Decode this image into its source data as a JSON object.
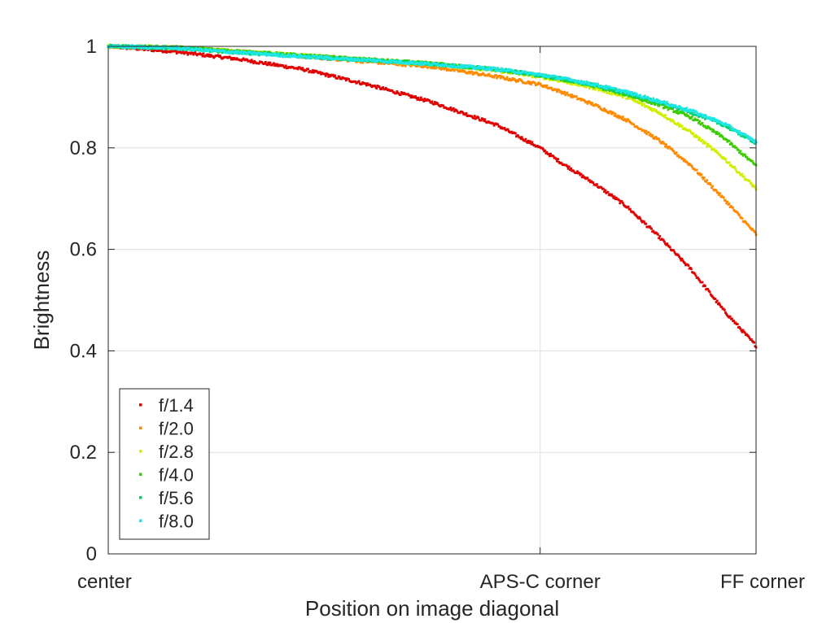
{
  "chart_data": {
    "type": "scatter",
    "title": "",
    "xlabel": "Position on image diagonal",
    "ylabel": "Brightness",
    "xlim": [
      0,
      1
    ],
    "ylim": [
      0,
      1
    ],
    "xticks": [
      {
        "value": 0,
        "label": "center"
      },
      {
        "value": 0.6667,
        "label": "APS-C corner"
      },
      {
        "value": 1,
        "label": "FF corner"
      }
    ],
    "yticks": [
      {
        "value": 0,
        "label": "0"
      },
      {
        "value": 0.2,
        "label": "0.2"
      },
      {
        "value": 0.4,
        "label": "0.4"
      },
      {
        "value": 0.6,
        "label": "0.6"
      },
      {
        "value": 0.8,
        "label": "0.8"
      },
      {
        "value": 1,
        "label": "1"
      }
    ],
    "grid": true,
    "legend_position": "bottom-left",
    "series": [
      {
        "name": "f/1.4",
        "color": "#e00000",
        "x": [
          0,
          0.1,
          0.2,
          0.3,
          0.4,
          0.5,
          0.6,
          0.6667,
          0.7,
          0.75,
          0.8,
          0.85,
          0.9,
          0.95,
          1.0
        ],
        "y": [
          1.0,
          0.99,
          0.975,
          0.955,
          0.925,
          0.89,
          0.845,
          0.8,
          0.77,
          0.73,
          0.685,
          0.625,
          0.56,
          0.48,
          0.41
        ]
      },
      {
        "name": "f/2.0",
        "color": "#ff8a00",
        "x": [
          0,
          0.1,
          0.2,
          0.3,
          0.4,
          0.5,
          0.6,
          0.6667,
          0.7,
          0.75,
          0.8,
          0.85,
          0.9,
          0.95,
          1.0
        ],
        "y": [
          1.0,
          0.998,
          0.99,
          0.98,
          0.97,
          0.96,
          0.94,
          0.925,
          0.91,
          0.885,
          0.855,
          0.815,
          0.765,
          0.7,
          0.63
        ]
      },
      {
        "name": "f/2.8",
        "color": "#d2ee00",
        "x": [
          0,
          0.1,
          0.2,
          0.3,
          0.4,
          0.5,
          0.6,
          0.6667,
          0.7,
          0.75,
          0.8,
          0.85,
          0.9,
          0.95,
          1.0
        ],
        "y": [
          1.0,
          0.998,
          0.99,
          0.982,
          0.973,
          0.965,
          0.952,
          0.94,
          0.932,
          0.918,
          0.9,
          0.87,
          0.83,
          0.78,
          0.72
        ]
      },
      {
        "name": "f/4.0",
        "color": "#3dcc00",
        "x": [
          0,
          0.1,
          0.2,
          0.3,
          0.4,
          0.5,
          0.6,
          0.6667,
          0.7,
          0.75,
          0.8,
          0.85,
          0.9,
          0.95,
          1.0
        ],
        "y": [
          1.0,
          0.998,
          0.99,
          0.982,
          0.974,
          0.966,
          0.954,
          0.942,
          0.935,
          0.922,
          0.905,
          0.885,
          0.86,
          0.82,
          0.765
        ]
      },
      {
        "name": "f/5.6",
        "color": "#00d26e",
        "x": [
          0,
          0.1,
          0.2,
          0.3,
          0.4,
          0.5,
          0.6,
          0.6667,
          0.7,
          0.75,
          0.8,
          0.85,
          0.9,
          0.95,
          1.0
        ],
        "y": [
          1.0,
          0.997,
          0.988,
          0.98,
          0.973,
          0.965,
          0.955,
          0.943,
          0.936,
          0.924,
          0.908,
          0.89,
          0.87,
          0.845,
          0.81
        ]
      },
      {
        "name": "f/8.0",
        "color": "#1ee6e6",
        "x": [
          0,
          0.1,
          0.2,
          0.3,
          0.4,
          0.5,
          0.6,
          0.6667,
          0.7,
          0.75,
          0.8,
          0.85,
          0.9,
          0.95,
          1.0
        ],
        "y": [
          1.0,
          0.997,
          0.988,
          0.98,
          0.973,
          0.965,
          0.955,
          0.944,
          0.937,
          0.925,
          0.91,
          0.892,
          0.873,
          0.848,
          0.812
        ]
      }
    ]
  }
}
